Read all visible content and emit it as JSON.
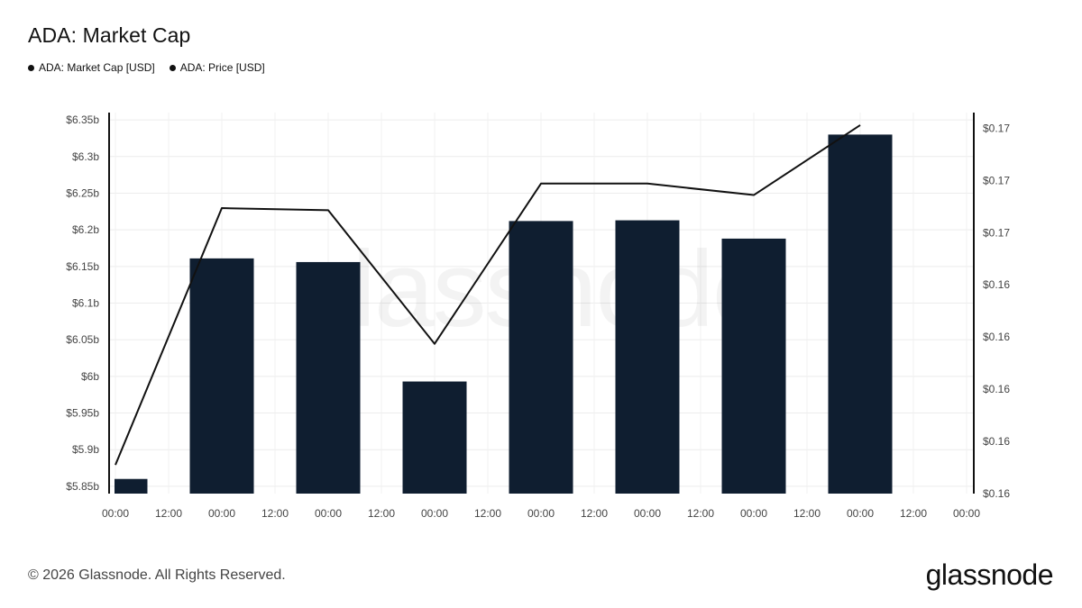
{
  "title": "ADA: Market Cap",
  "legend": [
    {
      "label": "ADA: Market Cap [USD]",
      "color": "#111111"
    },
    {
      "label": "ADA: Price [USD]",
      "color": "#111111"
    }
  ],
  "footer": {
    "copyright": "© 2026 Glassnode. All Rights Reserved.",
    "logo": "glassnode"
  },
  "watermark": "glassnode",
  "chart_data": {
    "type": "bar",
    "x_tick_labels": [
      "00:00",
      "12:00",
      "00:00",
      "12:00",
      "00:00",
      "12:00",
      "00:00",
      "12:00",
      "00:00",
      "12:00",
      "00:00",
      "12:00",
      "00:00",
      "12:00",
      "00:00",
      "12:00",
      "00:00"
    ],
    "bar_color": "#0f1e30",
    "line_color": "#111111",
    "left_axis": {
      "ylim": [
        5.84,
        6.36
      ],
      "ticks": [
        5.85,
        5.9,
        5.95,
        6.0,
        6.05,
        6.1,
        6.15,
        6.2,
        6.25,
        6.3,
        6.35
      ],
      "tick_labels": [
        "$5.85b",
        "$5.9b",
        "$5.95b",
        "$6b",
        "$6.05b",
        "$6.1b",
        "$6.15b",
        "$6.2b",
        "$6.25b",
        "$6.3b",
        "$6.35b"
      ]
    },
    "right_axis": {
      "ylim": [
        0.161,
        0.1683
      ],
      "ticks": [
        0.161,
        0.162,
        0.163,
        0.164,
        0.165,
        0.166,
        0.167,
        0.168
      ],
      "tick_labels": [
        "$0.16",
        "$0.16",
        "$0.16",
        "$0.16",
        "$0.16",
        "$0.17",
        "$0.17",
        "$0.17"
      ]
    },
    "series": [
      {
        "name": "ADA: Market Cap [USD]",
        "type": "bar",
        "axis": "left",
        "x": [
          0,
          1,
          2,
          3,
          4,
          5,
          6,
          7
        ],
        "values": [
          5.86,
          6.161,
          6.156,
          5.993,
          6.212,
          6.213,
          6.188,
          6.33
        ]
      },
      {
        "name": "ADA: Price [USD]",
        "type": "line",
        "axis": "right",
        "x": [
          0,
          1,
          2,
          3,
          4,
          5,
          6,
          7
        ],
        "values": [
          0.16155,
          0.16647,
          0.16643,
          0.16387,
          0.16694,
          0.16694,
          0.16672,
          0.16806
        ]
      }
    ],
    "grid": true
  }
}
